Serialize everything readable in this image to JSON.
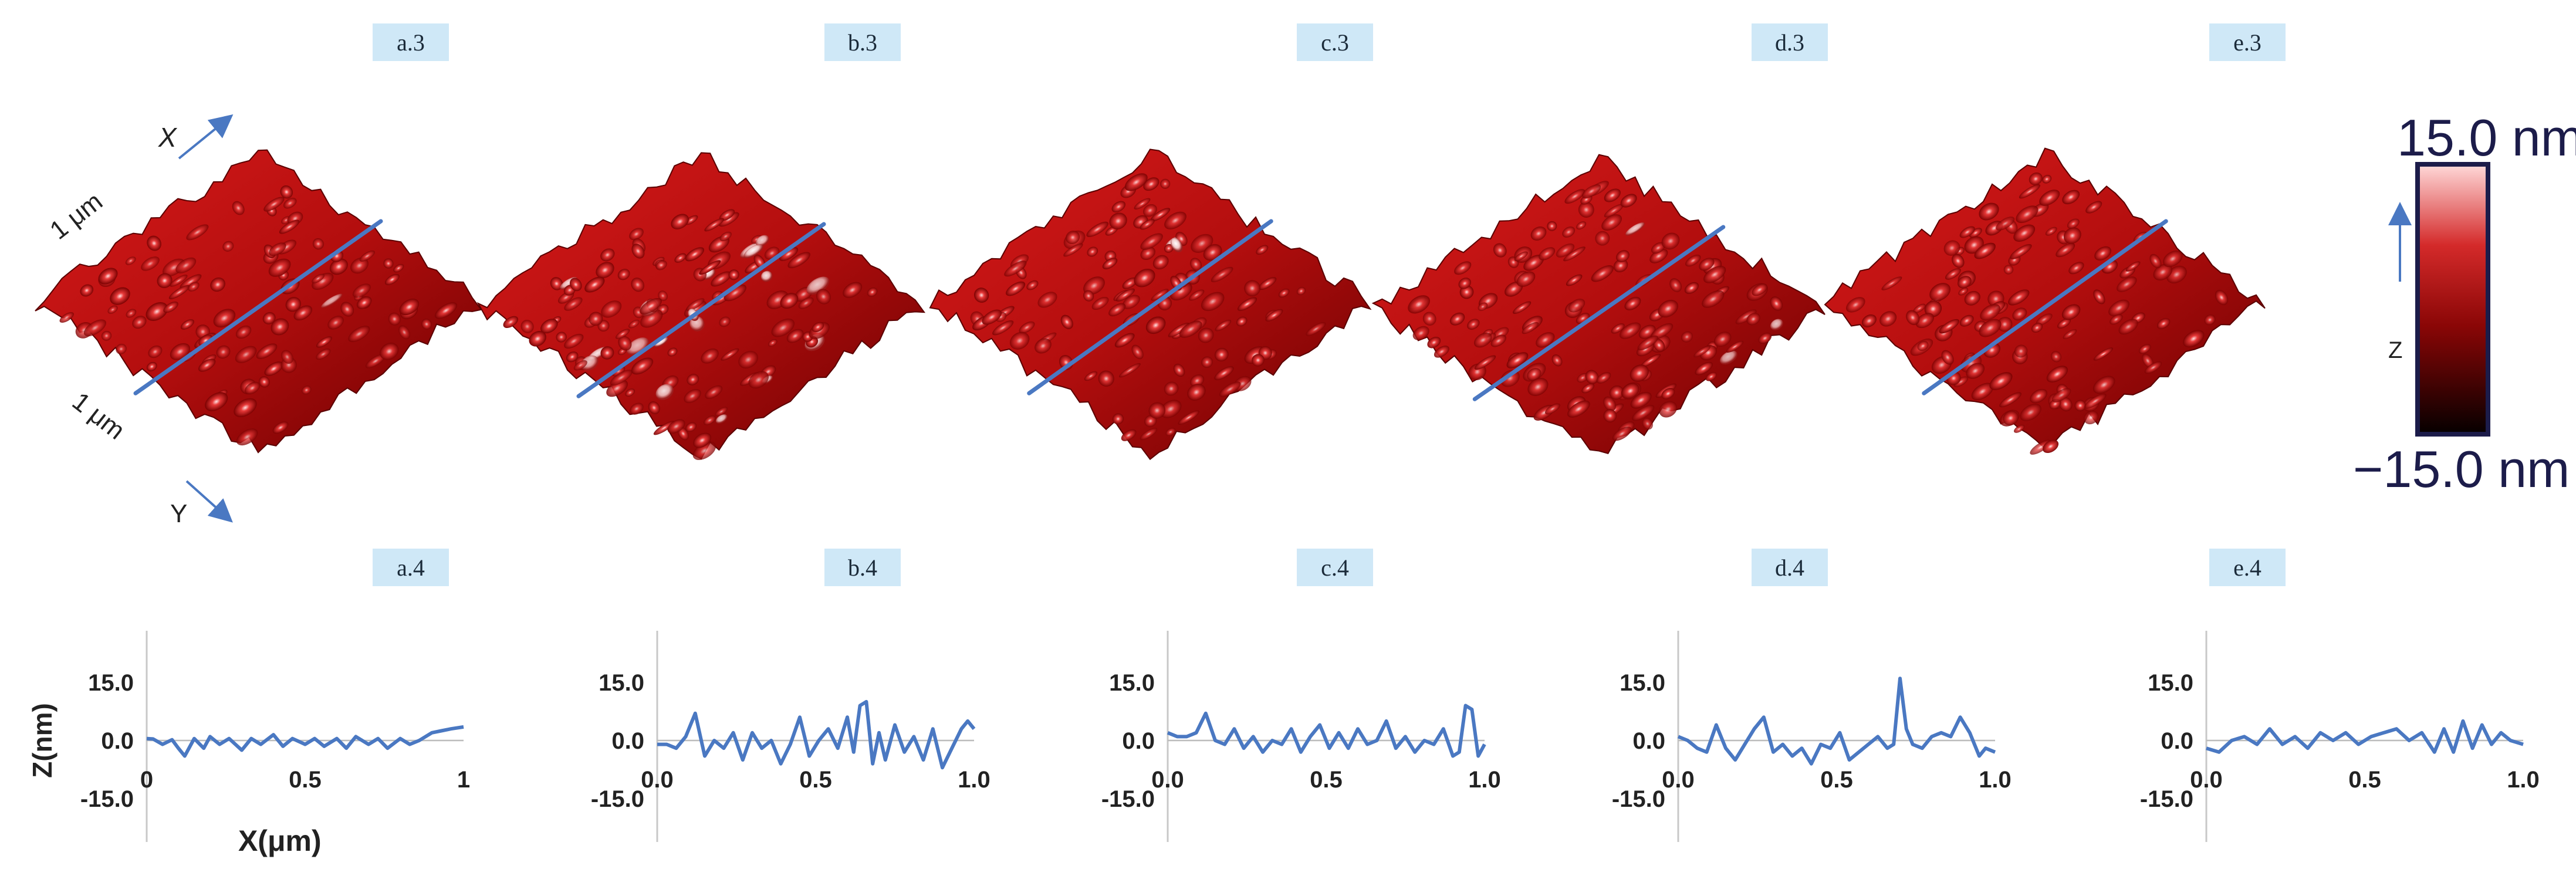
{
  "colors": {
    "surface_dark": "#3a0000",
    "surface_mid": "#b30e0e",
    "surface_light": "#ffd9d9",
    "profile_line": "#4a78c2",
    "tag_bg": "#cfe8f7",
    "scale_border": "#1c1c4a",
    "axis_text": "#222222",
    "scale_text": "#1c1c4a"
  },
  "surface_panels": [
    {
      "label": "a.3"
    },
    {
      "label": "b.3"
    },
    {
      "label": "c.3"
    },
    {
      "label": "d.3"
    },
    {
      "label": "e.3"
    }
  ],
  "surface_axes": {
    "x_label": "X",
    "y_label": "Y",
    "x_extent": "1 μm",
    "y_extent": "1 μm"
  },
  "color_scale": {
    "max_label": "15.0 nm",
    "min_label": "−15.0 nm",
    "axis_label": "Z",
    "min": -15,
    "max": 15
  },
  "chart_data": [
    {
      "type": "line",
      "panel_label": "a.4",
      "ylabel": "Z(nm)",
      "xlabel": "X(μm)",
      "xlim": [
        0,
        1
      ],
      "ylim": [
        -15,
        15
      ],
      "yticks": [
        "15.0",
        "0.0",
        "-15.0"
      ],
      "xticks": [
        "0",
        "0.5",
        "1"
      ],
      "x": [
        0,
        0.02,
        0.05,
        0.08,
        0.1,
        0.12,
        0.15,
        0.18,
        0.2,
        0.23,
        0.26,
        0.3,
        0.33,
        0.36,
        0.4,
        0.43,
        0.46,
        0.5,
        0.53,
        0.56,
        0.6,
        0.63,
        0.66,
        0.7,
        0.73,
        0.76,
        0.8,
        0.83,
        0.86,
        0.9,
        0.93,
        0.96,
        1.0
      ],
      "series": [
        {
          "values": [
            0.5,
            0.4,
            -1,
            0.2,
            -2,
            -4,
            0.5,
            -2,
            1,
            -1,
            0.5,
            -2.5,
            0.5,
            -1,
            1.5,
            -1.5,
            0.5,
            -1,
            0.5,
            -1.5,
            0.5,
            -2,
            1,
            -1,
            0.5,
            -2,
            0.5,
            -1,
            0,
            2,
            2.5,
            3,
            3.5
          ]
        }
      ]
    },
    {
      "type": "line",
      "panel_label": "b.4",
      "ylabel": "",
      "xlabel": "",
      "xlim": [
        0,
        1
      ],
      "ylim": [
        -15,
        15
      ],
      "yticks": [
        "15.0",
        "0.0",
        "-15.0"
      ],
      "xticks": [
        "0.0",
        "0.5",
        "1.0"
      ],
      "x": [
        0,
        0.03,
        0.06,
        0.09,
        0.12,
        0.15,
        0.18,
        0.21,
        0.24,
        0.27,
        0.3,
        0.33,
        0.36,
        0.39,
        0.42,
        0.45,
        0.48,
        0.51,
        0.54,
        0.57,
        0.6,
        0.62,
        0.64,
        0.66,
        0.68,
        0.7,
        0.72,
        0.75,
        0.78,
        0.81,
        0.84,
        0.87,
        0.9,
        0.93,
        0.96,
        0.98,
        1.0
      ],
      "series": [
        {
          "values": [
            -1,
            -1,
            -2,
            1,
            7,
            -4,
            0,
            -2,
            2,
            -5,
            2,
            -2,
            0,
            -6,
            -1,
            6,
            -4,
            0,
            3,
            -2,
            6,
            -3,
            9,
            10,
            -6,
            2,
            -5,
            4,
            -3,
            1,
            -5,
            3,
            -7,
            -2,
            3,
            5,
            3
          ]
        }
      ]
    },
    {
      "type": "line",
      "panel_label": "c.4",
      "ylabel": "",
      "xlabel": "",
      "xlim": [
        0,
        1
      ],
      "ylim": [
        -15,
        15
      ],
      "yticks": [
        "15.0",
        "0.0",
        "-15.0"
      ],
      "xticks": [
        "0.0",
        "0.5",
        "1.0"
      ],
      "x": [
        0,
        0.03,
        0.06,
        0.09,
        0.12,
        0.15,
        0.18,
        0.21,
        0.24,
        0.27,
        0.3,
        0.33,
        0.36,
        0.39,
        0.42,
        0.45,
        0.48,
        0.51,
        0.54,
        0.57,
        0.6,
        0.63,
        0.66,
        0.69,
        0.72,
        0.75,
        0.78,
        0.81,
        0.84,
        0.87,
        0.9,
        0.92,
        0.94,
        0.96,
        0.98,
        1.0
      ],
      "series": [
        {
          "values": [
            2,
            1,
            1,
            2,
            7,
            0,
            -1,
            3,
            -2,
            1,
            -3,
            0,
            -1,
            3,
            -3,
            1,
            4,
            -2,
            2,
            -2,
            3,
            -1,
            0,
            5,
            -2,
            1,
            -3,
            0,
            -1,
            3,
            -4,
            -3,
            9,
            8,
            -4,
            -1
          ]
        }
      ]
    },
    {
      "type": "line",
      "panel_label": "d.4",
      "ylabel": "",
      "xlabel": "",
      "xlim": [
        0,
        1
      ],
      "ylim": [
        -15,
        15
      ],
      "yticks": [
        "15.0",
        "0.0",
        "-15.0"
      ],
      "xticks": [
        "0.0",
        "0.5",
        "1.0"
      ],
      "x": [
        0,
        0.03,
        0.06,
        0.09,
        0.12,
        0.15,
        0.18,
        0.21,
        0.24,
        0.27,
        0.3,
        0.33,
        0.36,
        0.39,
        0.42,
        0.45,
        0.48,
        0.51,
        0.54,
        0.57,
        0.6,
        0.63,
        0.66,
        0.68,
        0.7,
        0.72,
        0.74,
        0.77,
        0.8,
        0.83,
        0.86,
        0.89,
        0.92,
        0.95,
        0.97,
        1.0
      ],
      "series": [
        {
          "values": [
            1,
            0,
            -2,
            -3,
            4,
            -2,
            -5,
            -1,
            3,
            6,
            -3,
            -1,
            -4,
            -2,
            -6,
            -1,
            -2,
            2,
            -5,
            -3,
            -1,
            1,
            -2,
            -1,
            16,
            3,
            -1,
            -2,
            1,
            2,
            1,
            6,
            2,
            -4,
            -2,
            -3
          ]
        }
      ]
    },
    {
      "type": "line",
      "panel_label": "e.4",
      "ylabel": "",
      "xlabel": "",
      "xlim": [
        0,
        1
      ],
      "ylim": [
        -15,
        15
      ],
      "yticks": [
        "15.0",
        "0.0",
        "-15.0"
      ],
      "xticks": [
        "0.0",
        "0.5",
        "1.0"
      ],
      "x": [
        0,
        0.04,
        0.08,
        0.12,
        0.16,
        0.2,
        0.24,
        0.28,
        0.32,
        0.36,
        0.4,
        0.44,
        0.48,
        0.52,
        0.56,
        0.6,
        0.64,
        0.68,
        0.72,
        0.75,
        0.78,
        0.81,
        0.84,
        0.87,
        0.9,
        0.93,
        0.96,
        1.0
      ],
      "series": [
        {
          "values": [
            -2,
            -3,
            0,
            1,
            -1,
            3,
            -1,
            1,
            -2,
            2,
            0,
            2,
            -1,
            1,
            2,
            3,
            0,
            2,
            -3,
            3,
            -3,
            5,
            -2,
            4,
            -1,
            2,
            0,
            -1
          ]
        }
      ]
    }
  ]
}
